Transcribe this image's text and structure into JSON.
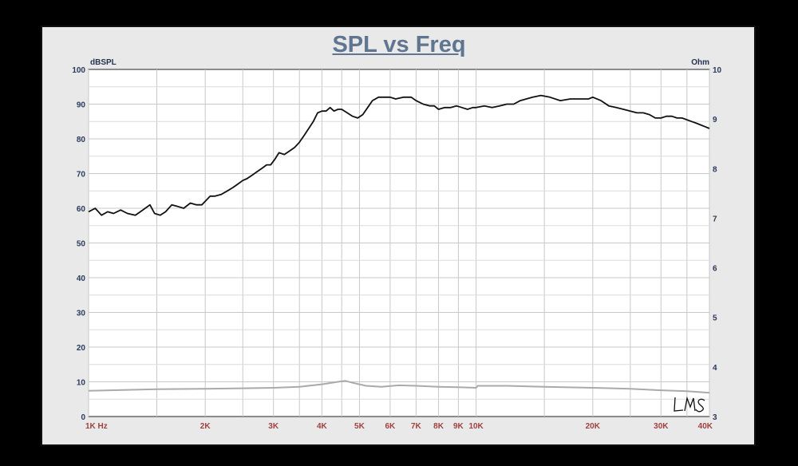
{
  "chart_data": {
    "type": "line",
    "title": "SPL vs Freq",
    "ylabel_left": "dBSPL",
    "ylabel_right": "Ohm",
    "x_scale": "log",
    "xlim": [
      1000,
      40000
    ],
    "ylim_left": [
      0,
      100
    ],
    "ylim_right": [
      3,
      10
    ],
    "x_ticks": [
      {
        "value": 1000,
        "label": "1K  Hz"
      },
      {
        "value": 2000,
        "label": "2K"
      },
      {
        "value": 3000,
        "label": "3K"
      },
      {
        "value": 4000,
        "label": "4K"
      },
      {
        "value": 5000,
        "label": "5K"
      },
      {
        "value": 6000,
        "label": "6K"
      },
      {
        "value": 7000,
        "label": "7K"
      },
      {
        "value": 8000,
        "label": "8K"
      },
      {
        "value": 9000,
        "label": "9K"
      },
      {
        "value": 10000,
        "label": "10K"
      },
      {
        "value": 20000,
        "label": "20K"
      },
      {
        "value": 30000,
        "label": "30K"
      },
      {
        "value": 40000,
        "label": "40K"
      }
    ],
    "y_ticks_left": [
      "0",
      "10",
      "20",
      "30",
      "40",
      "50",
      "60",
      "70",
      "80",
      "90",
      "100"
    ],
    "y_ticks_right": [
      {
        "value": 3,
        "label": "3"
      },
      {
        "value": 4,
        "label": "4"
      },
      {
        "value": 5,
        "label": "5"
      },
      {
        "value": 6,
        "label": "6"
      },
      {
        "value": 7,
        "label": "7"
      },
      {
        "value": 8,
        "label": "8"
      },
      {
        "value": 9,
        "label": "9"
      },
      {
        "value": 10,
        "label": "10"
      }
    ],
    "grid": true,
    "series": [
      {
        "axis": "left",
        "color": "#111111",
        "points": [
          [
            1000,
            59
          ],
          [
            1040,
            60
          ],
          [
            1080,
            58
          ],
          [
            1120,
            59
          ],
          [
            1160,
            58.5
          ],
          [
            1210,
            59.5
          ],
          [
            1260,
            58.5
          ],
          [
            1320,
            58
          ],
          [
            1380,
            59.5
          ],
          [
            1440,
            61
          ],
          [
            1480,
            58.5
          ],
          [
            1530,
            58
          ],
          [
            1580,
            59
          ],
          [
            1640,
            61
          ],
          [
            1700,
            60.5
          ],
          [
            1760,
            60
          ],
          [
            1830,
            61.5
          ],
          [
            1900,
            61
          ],
          [
            1960,
            61
          ],
          [
            2000,
            62
          ],
          [
            2060,
            63.5
          ],
          [
            2120,
            63.5
          ],
          [
            2200,
            64
          ],
          [
            2280,
            65
          ],
          [
            2360,
            66
          ],
          [
            2430,
            67
          ],
          [
            2500,
            68
          ],
          [
            2560,
            68.5
          ],
          [
            2640,
            69.5
          ],
          [
            2720,
            70.5
          ],
          [
            2800,
            71.5
          ],
          [
            2880,
            72.5
          ],
          [
            2950,
            72.5
          ],
          [
            3020,
            74
          ],
          [
            3100,
            76
          ],
          [
            3200,
            75.5
          ],
          [
            3300,
            76.5
          ],
          [
            3400,
            77.5
          ],
          [
            3500,
            79
          ],
          [
            3600,
            81
          ],
          [
            3700,
            83
          ],
          [
            3800,
            85
          ],
          [
            3900,
            87.5
          ],
          [
            4000,
            88
          ],
          [
            4100,
            88
          ],
          [
            4200,
            89
          ],
          [
            4300,
            88
          ],
          [
            4400,
            88.5
          ],
          [
            4500,
            88.5
          ],
          [
            4650,
            87.5
          ],
          [
            4800,
            86.5
          ],
          [
            4950,
            86
          ],
          [
            5100,
            87
          ],
          [
            5250,
            89
          ],
          [
            5400,
            91
          ],
          [
            5600,
            92
          ],
          [
            5800,
            92
          ],
          [
            6000,
            92
          ],
          [
            6200,
            91.5
          ],
          [
            6500,
            92
          ],
          [
            6800,
            92
          ],
          [
            7000,
            91
          ],
          [
            7300,
            90
          ],
          [
            7600,
            89.5
          ],
          [
            7800,
            89.5
          ],
          [
            8000,
            88.5
          ],
          [
            8300,
            89
          ],
          [
            8600,
            89
          ],
          [
            8900,
            89.5
          ],
          [
            9200,
            89
          ],
          [
            9500,
            88.5
          ],
          [
            9800,
            89
          ],
          [
            10000,
            89
          ],
          [
            10500,
            89.5
          ],
          [
            11000,
            89
          ],
          [
            11500,
            89.5
          ],
          [
            12000,
            90
          ],
          [
            12500,
            90
          ],
          [
            13000,
            91
          ],
          [
            14000,
            92
          ],
          [
            14700,
            92.5
          ],
          [
            15500,
            92
          ],
          [
            16500,
            91
          ],
          [
            17500,
            91.5
          ],
          [
            18500,
            91.5
          ],
          [
            19500,
            91.5
          ],
          [
            20000,
            92
          ],
          [
            21000,
            91
          ],
          [
            22000,
            89.5
          ],
          [
            23000,
            89
          ],
          [
            24000,
            88.5
          ],
          [
            25000,
            88
          ],
          [
            26000,
            87.5
          ],
          [
            27000,
            87.5
          ],
          [
            28000,
            87
          ],
          [
            29000,
            86
          ],
          [
            30000,
            86
          ],
          [
            31000,
            86.5
          ],
          [
            32000,
            86.5
          ],
          [
            33000,
            86
          ],
          [
            34000,
            86
          ],
          [
            35000,
            85.5
          ],
          [
            36000,
            85
          ],
          [
            37000,
            84.5
          ],
          [
            38000,
            84
          ],
          [
            39000,
            83.5
          ],
          [
            40000,
            83
          ]
        ]
      },
      {
        "axis": "right",
        "color": "#aaaaaa",
        "points": [
          [
            1000,
            3.52
          ],
          [
            1500,
            3.55
          ],
          [
            2000,
            3.56
          ],
          [
            2500,
            3.57
          ],
          [
            3000,
            3.58
          ],
          [
            3500,
            3.6
          ],
          [
            4000,
            3.65
          ],
          [
            4400,
            3.7
          ],
          [
            4600,
            3.72
          ],
          [
            4800,
            3.68
          ],
          [
            5200,
            3.62
          ],
          [
            5700,
            3.6
          ],
          [
            6300,
            3.63
          ],
          [
            7000,
            3.62
          ],
          [
            8000,
            3.6
          ],
          [
            9000,
            3.59
          ],
          [
            10000,
            3.58
          ],
          [
            10100,
            3.62
          ],
          [
            12000,
            3.62
          ],
          [
            15000,
            3.6
          ],
          [
            20000,
            3.58
          ],
          [
            25000,
            3.56
          ],
          [
            30000,
            3.53
          ],
          [
            35000,
            3.51
          ],
          [
            40000,
            3.48
          ]
        ]
      }
    ]
  }
}
